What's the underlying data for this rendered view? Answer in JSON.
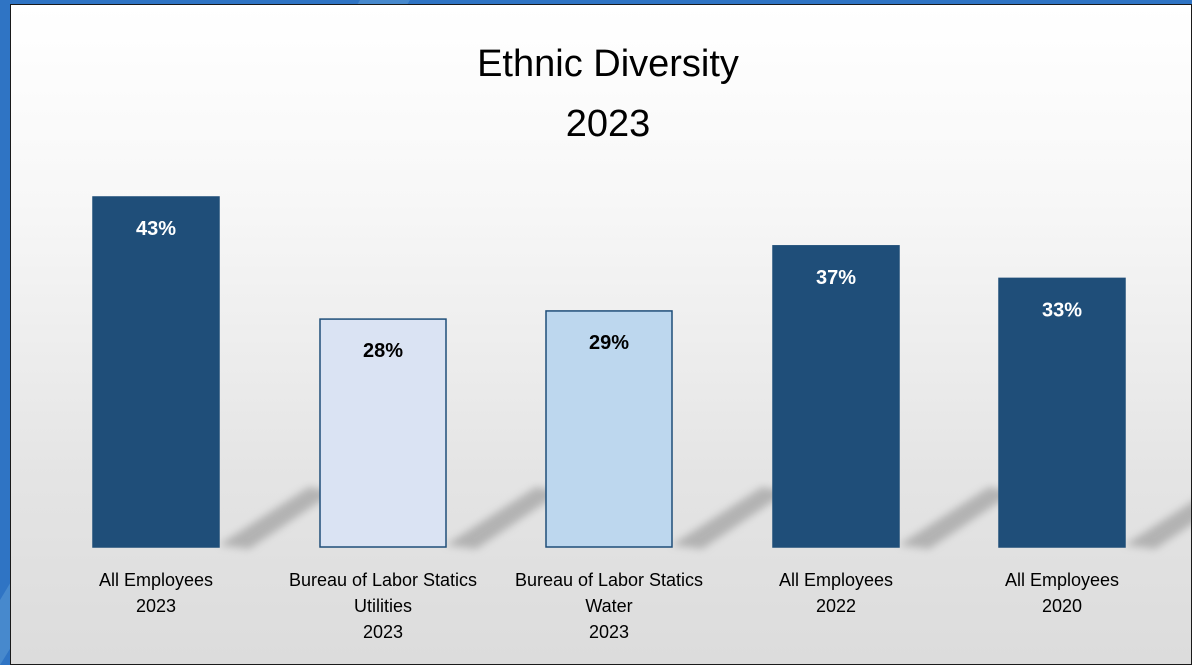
{
  "chart_data": {
    "type": "bar",
    "title_lines": [
      "Ethnic Diversity",
      "2023"
    ],
    "categories": [
      [
        "All Employees",
        "2023"
      ],
      [
        "Bureau of Labor Statics",
        "Utilities",
        "2023"
      ],
      [
        "Bureau of Labor Statics",
        "Water",
        "2023"
      ],
      [
        "All Employees",
        "2022"
      ],
      [
        "All Employees",
        "2020"
      ]
    ],
    "values": [
      43,
      28,
      29,
      37,
      33
    ],
    "labels": [
      "43%",
      "28%",
      "29%",
      "37%",
      "33%"
    ],
    "unit": "%",
    "ylim": [
      0,
      50
    ],
    "grid": false,
    "legend": "none",
    "colors": [
      "#1f4e79",
      "#dae3f3",
      "#bdd7ee",
      "#1f4e79",
      "#1f4e79"
    ],
    "label_colors": [
      "#ffffff",
      "#000000",
      "#000000",
      "#ffffff",
      "#ffffff"
    ],
    "bar_border_color": "#1f4e79",
    "background_accent": "#2f74c4"
  }
}
